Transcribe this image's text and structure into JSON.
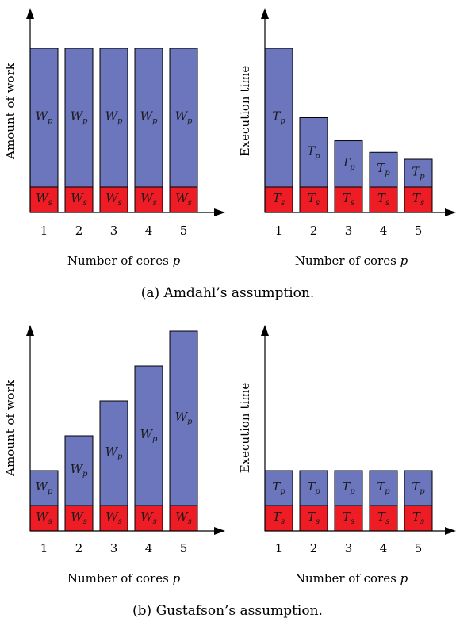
{
  "colors": {
    "parallel": "#6b76bd",
    "serial": "#ee1c24",
    "axis": "#000000"
  },
  "captions": {
    "a": "(a) Amdahl’s assumption.",
    "b": "(b) Gustafson’s assumption."
  },
  "chart_data": [
    {
      "id": "amdahl-work",
      "type": "bar",
      "stacked": true,
      "xlabel": "Number of cores p",
      "ylabel": "Amount of work",
      "categories": [
        "1",
        "2",
        "3",
        "4",
        "5"
      ],
      "series": [
        {
          "name": "Ws",
          "symbol": "W",
          "sub": "s",
          "values": [
            1,
            1,
            1,
            1,
            1
          ]
        },
        {
          "name": "Wp",
          "symbol": "W",
          "sub": "p",
          "values": [
            5,
            5,
            5,
            5,
            5
          ]
        }
      ],
      "ylim": [
        0,
        6.9
      ]
    },
    {
      "id": "amdahl-time",
      "type": "bar",
      "stacked": true,
      "xlabel": "Number of cores p",
      "ylabel": "Execution time",
      "categories": [
        "1",
        "2",
        "3",
        "4",
        "5"
      ],
      "series": [
        {
          "name": "Ts",
          "symbol": "T",
          "sub": "s",
          "values": [
            1,
            1,
            1,
            1,
            1
          ]
        },
        {
          "name": "Tp",
          "symbol": "T",
          "sub": "p",
          "values": [
            5,
            2.5,
            1.67,
            1.25,
            1
          ]
        }
      ],
      "ylim": [
        0,
        6.9
      ]
    },
    {
      "id": "gustafson-work",
      "type": "bar",
      "stacked": true,
      "xlabel": "Number of cores p",
      "ylabel": "Amount of work",
      "categories": [
        "1",
        "2",
        "3",
        "4",
        "5"
      ],
      "series": [
        {
          "name": "Ws",
          "symbol": "W",
          "sub": "s",
          "values": [
            1,
            1,
            1,
            1,
            1
          ]
        },
        {
          "name": "Wp",
          "symbol": "W",
          "sub": "p",
          "values": [
            1,
            2,
            3,
            4,
            5
          ]
        }
      ],
      "ylim": [
        0,
        6
      ]
    },
    {
      "id": "gustafson-time",
      "type": "bar",
      "stacked": true,
      "xlabel": "Number of cores p",
      "ylabel": "Execution time",
      "categories": [
        "1",
        "2",
        "3",
        "4",
        "5"
      ],
      "series": [
        {
          "name": "Ts",
          "symbol": "T",
          "sub": "s",
          "values": [
            1,
            1,
            1,
            1,
            1
          ]
        },
        {
          "name": "Tp",
          "symbol": "T",
          "sub": "p",
          "values": [
            1,
            1,
            1,
            1,
            1
          ]
        }
      ],
      "ylim": [
        0,
        6
      ]
    }
  ]
}
